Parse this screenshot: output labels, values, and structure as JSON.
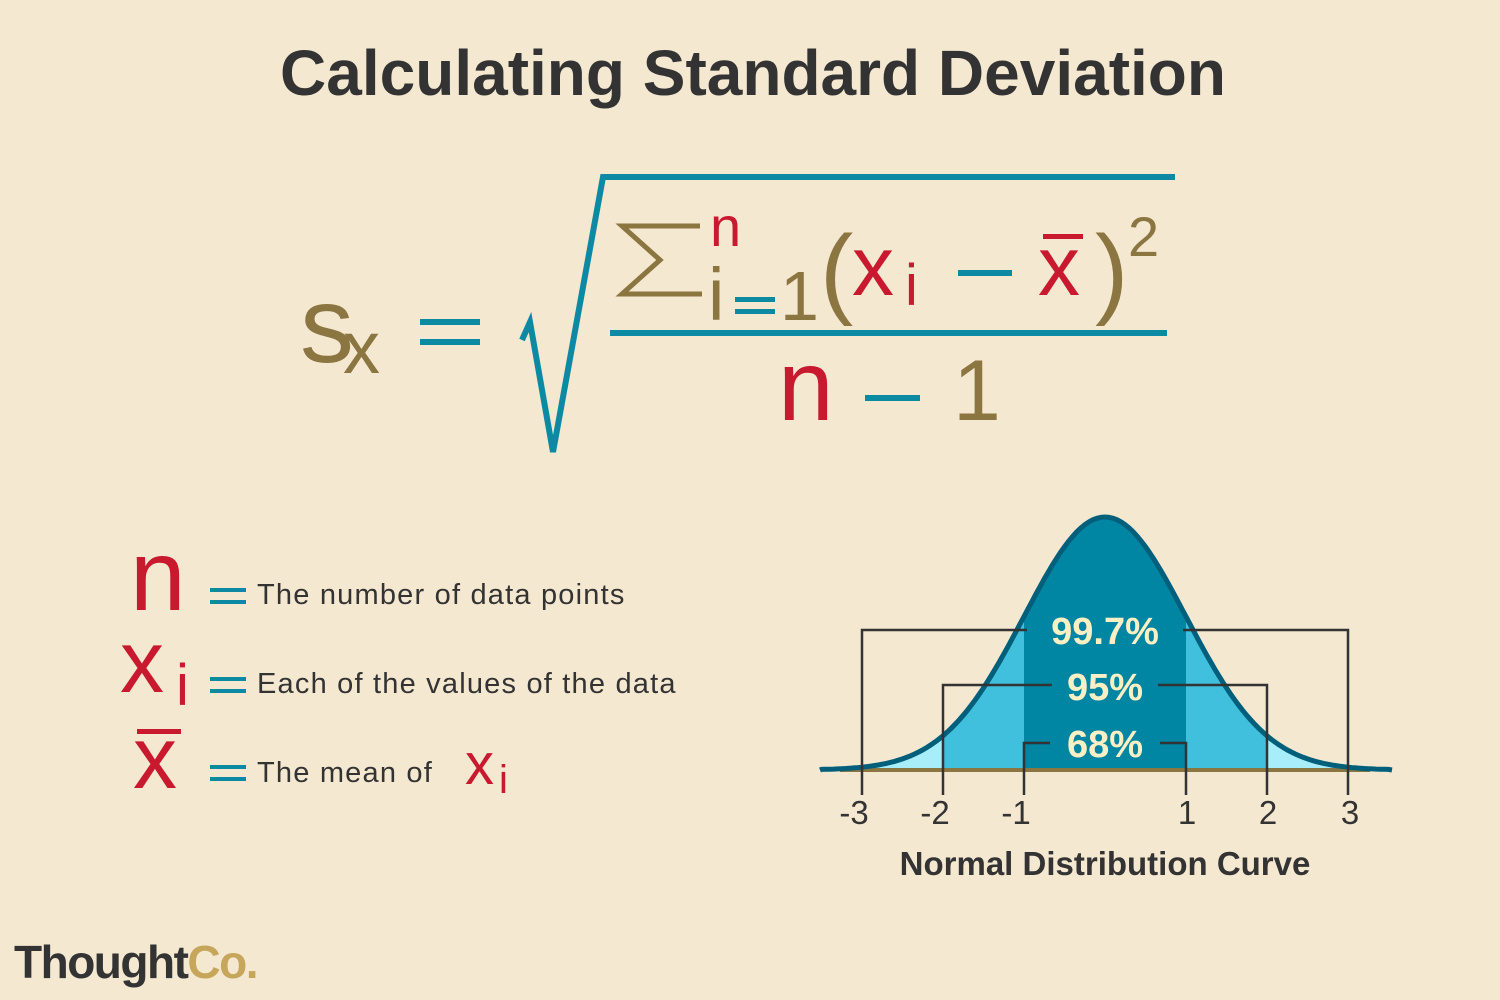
{
  "title": "Calculating Standard Deviation",
  "formula": {
    "lhs_symbol": "s",
    "lhs_subscript": "x",
    "sum_upper": "n",
    "sum_index": "i",
    "sum_lower": "1",
    "term_x": "x",
    "term_sub": "i",
    "mean": "x",
    "exponent": "2",
    "open_paren": "(",
    "close_paren": ")",
    "denominator_n": "n",
    "denominator_one": "1"
  },
  "legend": [
    {
      "symbol": "n",
      "subscript": "",
      "description": "The number of data points"
    },
    {
      "symbol": "x",
      "subscript": "i",
      "description": "Each of the values of the data"
    },
    {
      "symbol": "x",
      "subscript": "",
      "description": "The mean of ",
      "suffix_symbol": "x",
      "suffix_subscript": "i"
    }
  ],
  "diagram": {
    "caption": "Normal Distribution Curve",
    "intervals": [
      {
        "label": "99.7%",
        "sigma": 3
      },
      {
        "label": "95%",
        "sigma": 2
      },
      {
        "label": "68%",
        "sigma": 1
      }
    ],
    "ticks": [
      "-3",
      "-2",
      "-1",
      "1",
      "2",
      "3"
    ],
    "colors": {
      "within_1": "#0086a3",
      "within_2": "#40c0dc",
      "within_3": "#a8eefa",
      "curve": "#005f7a"
    }
  },
  "logo": {
    "part1": "Thought",
    "part2": "Co."
  }
}
